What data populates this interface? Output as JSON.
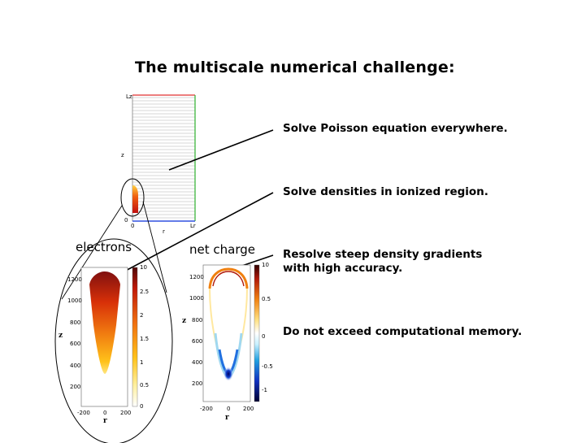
{
  "title": "The multiscale numerical challenge:",
  "bullets": {
    "poisson": "Solve Poisson equation everywhere.",
    "densities": "Solve densities in ionized region.",
    "gradients_line1": "Resolve steep density gradients",
    "gradients_line2": "with high accuracy.",
    "memory": "Do not exceed computational memory."
  },
  "grid_plot": {
    "y_top_label": "Lz",
    "y_axis_label": "z",
    "origin_label": "0",
    "x_origin_label": "0",
    "x_end_label": "Lr",
    "x_axis_label": "r",
    "colors": {
      "top": "#e03030",
      "right": "#30b030",
      "bottom": "#3050e0"
    }
  },
  "electrons_plot": {
    "title": "electrons",
    "ylabel": "z",
    "xlabel": "r",
    "y_ticks": [
      "1200",
      "1000",
      "800",
      "600",
      "400",
      "200"
    ],
    "x_ticks": [
      "-200",
      "0",
      "200"
    ],
    "colorbar_ticks": [
      "10",
      "2.5",
      "2",
      "1.5",
      "1",
      "0.5",
      "0"
    ]
  },
  "charge_plot": {
    "title": "net charge",
    "ylabel": "z",
    "xlabel": "r",
    "y_ticks": [
      "1200",
      "1000",
      "800",
      "600",
      "400",
      "200"
    ],
    "x_ticks": [
      "-200",
      "0",
      "200"
    ],
    "colorbar_ticks": [
      "10",
      "0.5",
      "0",
      "-0.5",
      "-1"
    ]
  }
}
